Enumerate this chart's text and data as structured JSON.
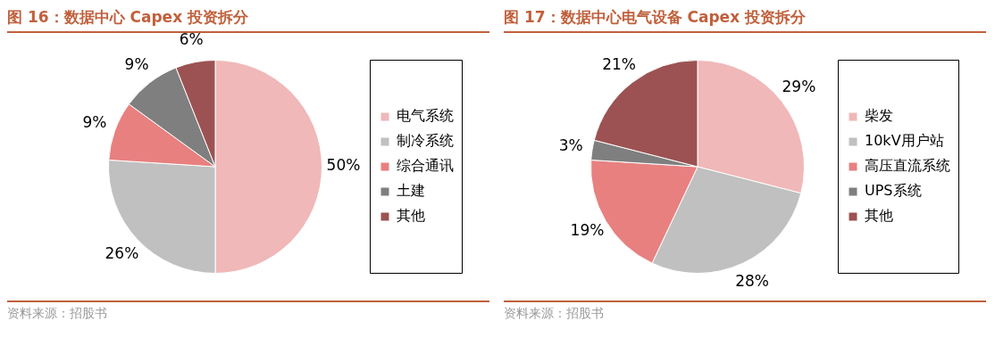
{
  "chart_data": [
    {
      "type": "pie",
      "title": "图 16：数据中心 Capex 投资拆分",
      "categories": [
        "电气系统",
        "制冷系统",
        "综合通讯",
        "土建",
        "其他"
      ],
      "values": [
        50,
        26,
        9,
        9,
        6
      ],
      "colors": [
        "#f0b8b8",
        "#c0c0c0",
        "#e88080",
        "#7f7f7f",
        "#9c5252"
      ],
      "value_labels": [
        "50%",
        "26%",
        "9%",
        "9%",
        "6%"
      ],
      "legend": "right",
      "annotations": [
        "资料来源：招股书"
      ]
    },
    {
      "type": "pie",
      "title": "图 17：数据中心电气设备 Capex 投资拆分",
      "categories": [
        "柴发",
        "10kV用户站",
        "高压直流系统",
        "UPS系统",
        "其他"
      ],
      "values": [
        29,
        28,
        19,
        3,
        21
      ],
      "colors": [
        "#f0b8b8",
        "#c0c0c0",
        "#e88080",
        "#7f7f7f",
        "#9c5252"
      ],
      "value_labels": [
        "29%",
        "28%",
        "19%",
        "3%",
        "21%"
      ],
      "legend": "right",
      "annotations": [
        "资料来源：招股书"
      ]
    }
  ]
}
